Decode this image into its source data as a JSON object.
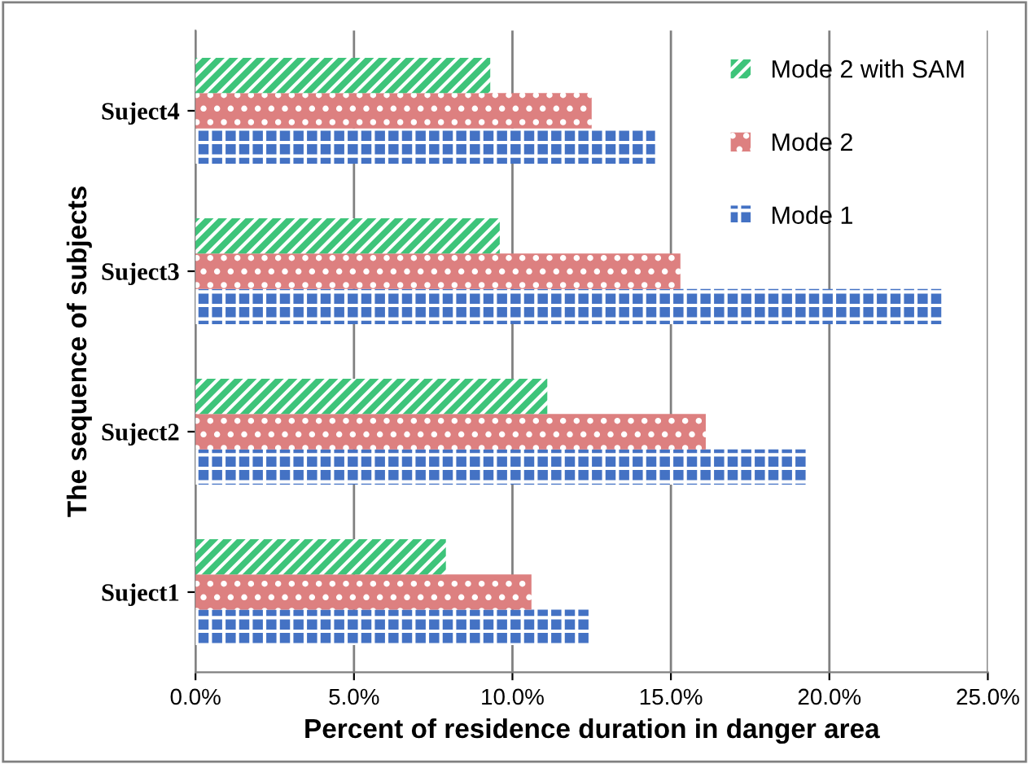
{
  "chart_data": {
    "type": "bar",
    "orientation": "horizontal",
    "xlabel": "Percent of residence duration in danger area",
    "ylabel": "The sequence of subjects",
    "categories": [
      "Suject4",
      "Suject3",
      "Suject2",
      "Suject1"
    ],
    "series": [
      {
        "name": "Mode 1",
        "color": "#4472c4",
        "values": [
          14.5,
          23.6,
          19.3,
          12.5
        ]
      },
      {
        "name": "Mode 2",
        "color": "#dd8080",
        "values": [
          12.5,
          15.3,
          16.1,
          10.6
        ]
      },
      {
        "name": "Mode 2 with SAM",
        "color": "#3ec47a",
        "values": [
          9.3,
          9.6,
          11.1,
          7.9
        ]
      }
    ],
    "xlim": [
      0,
      25
    ],
    "xticks": [
      {
        "value": 0,
        "label": "0.0%"
      },
      {
        "value": 5,
        "label": "5.0%"
      },
      {
        "value": 10,
        "label": "10.0%"
      },
      {
        "value": 15,
        "label": "15.0%"
      },
      {
        "value": 20,
        "label": "20.0%"
      },
      {
        "value": 25,
        "label": "25.0%"
      }
    ],
    "grid": "x",
    "legend": "top right"
  }
}
